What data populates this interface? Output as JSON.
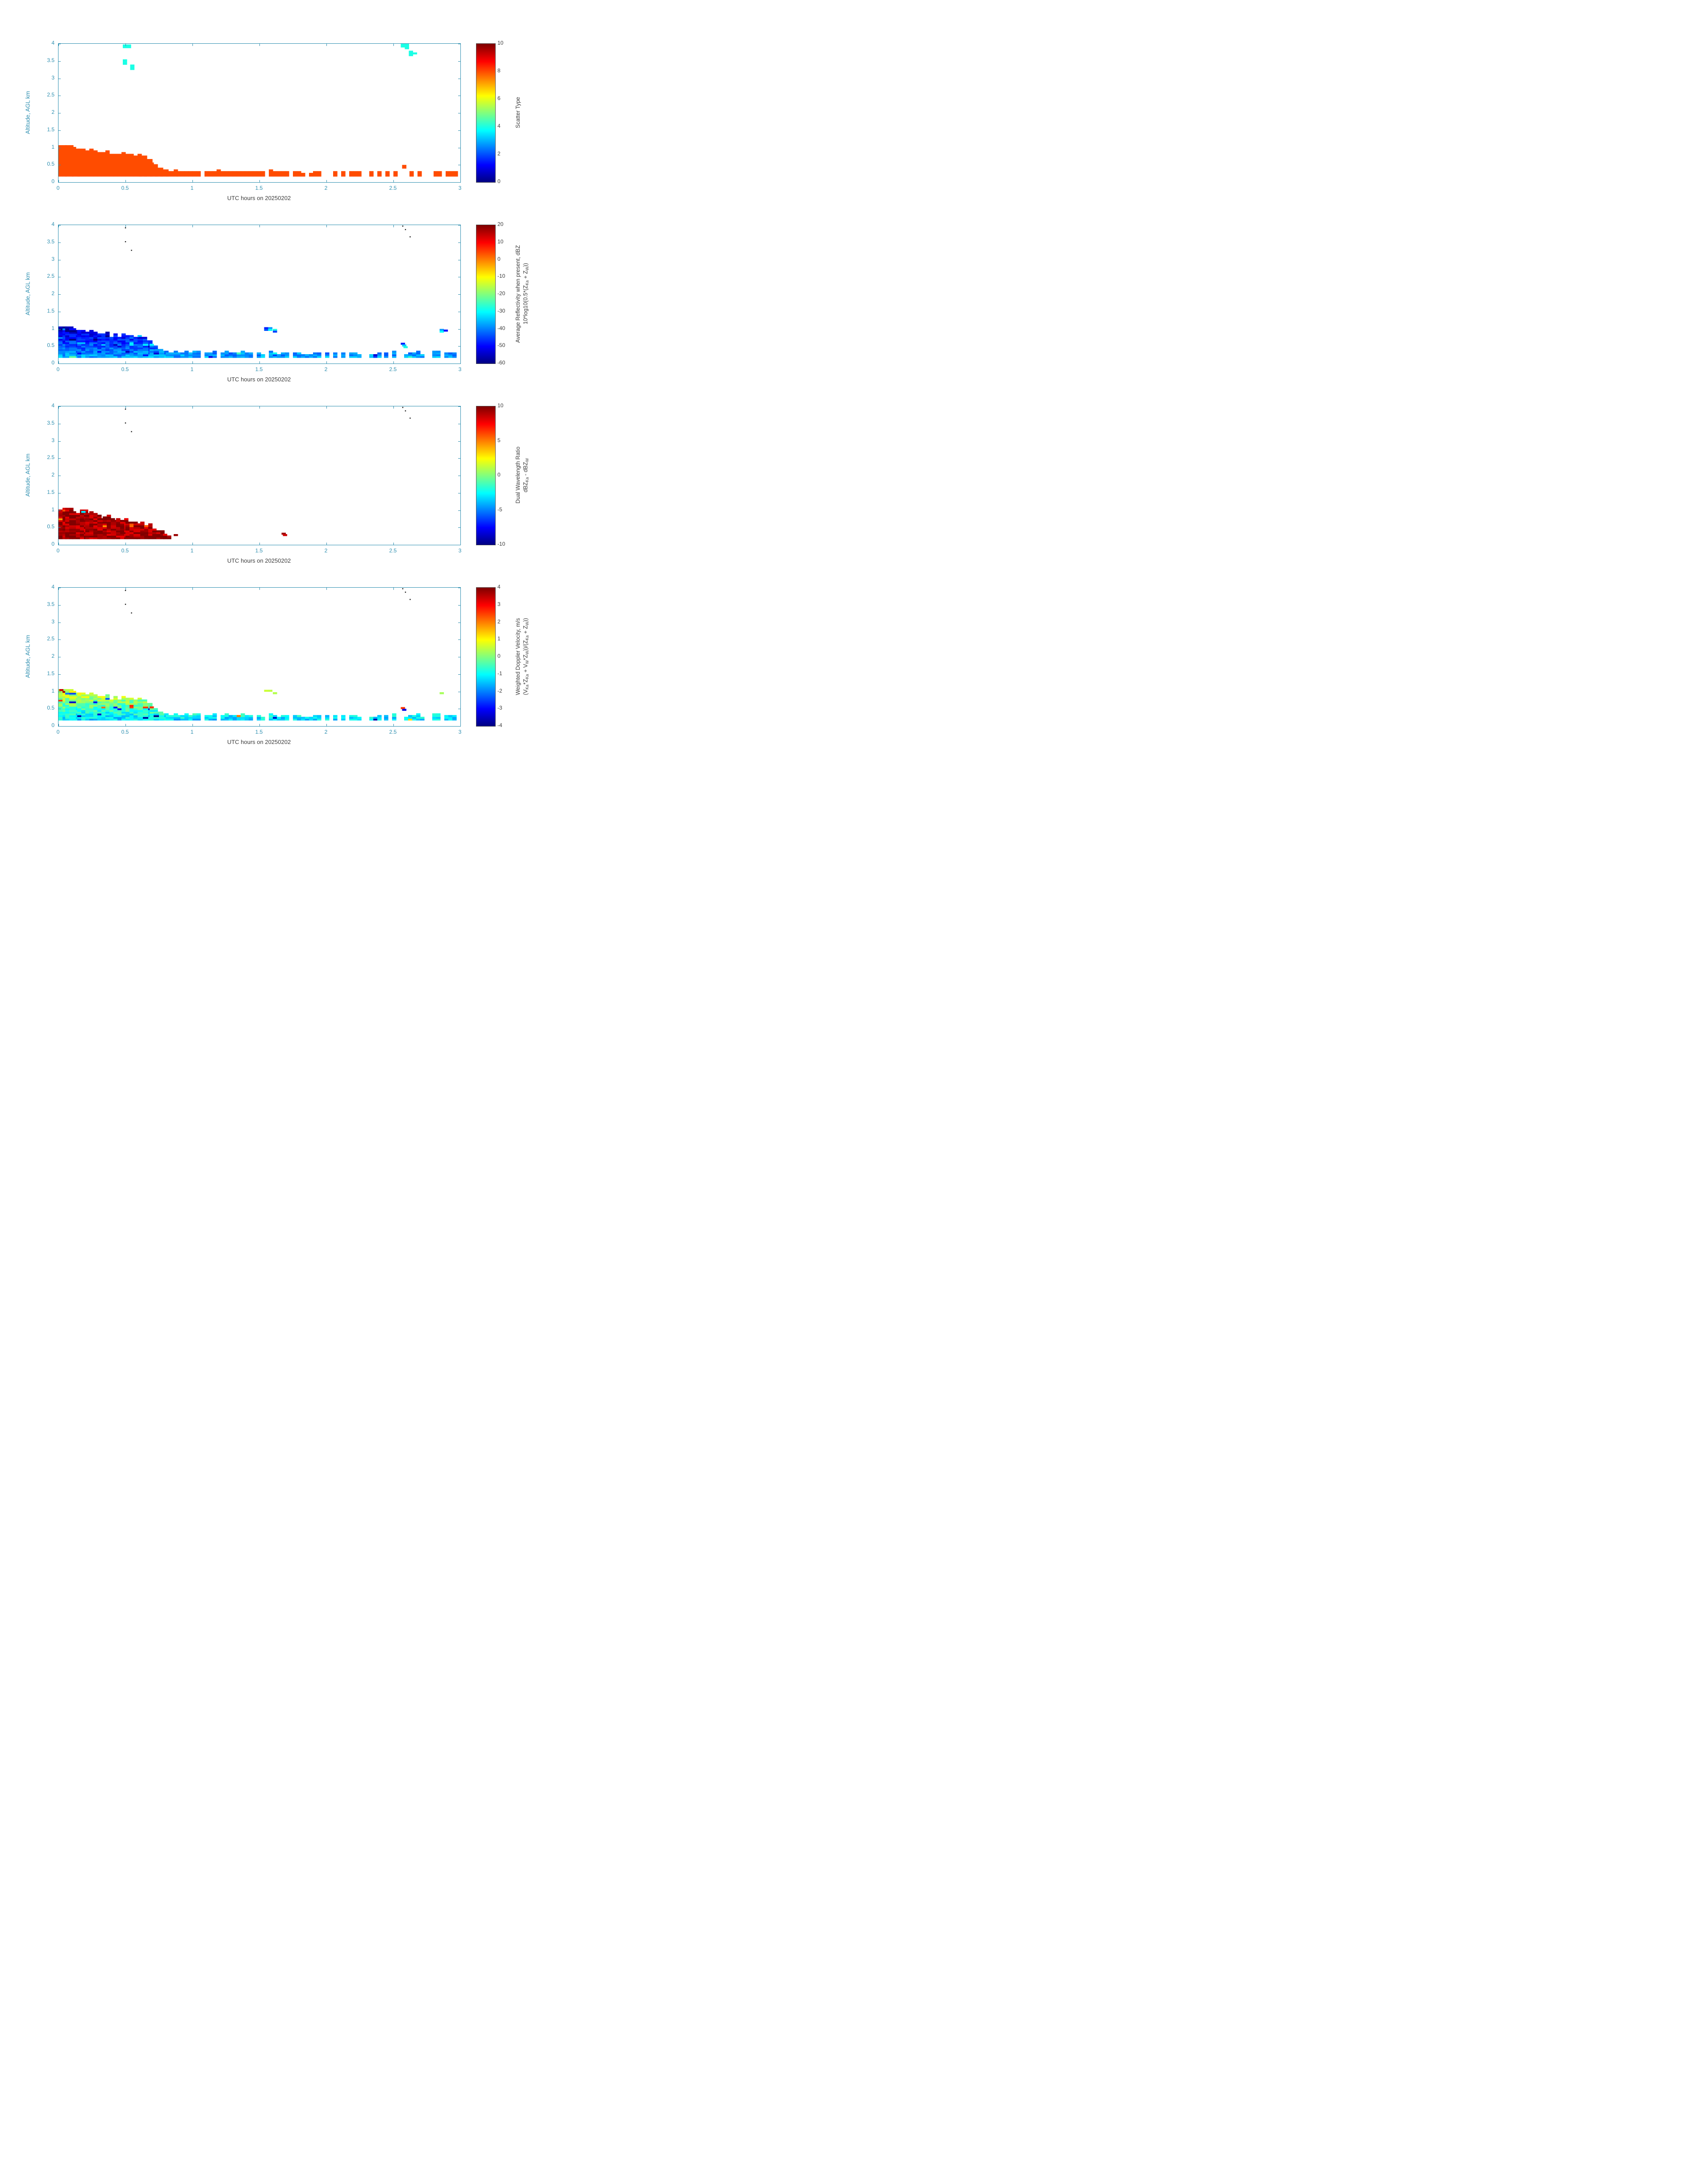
{
  "figure": {
    "bg": "#ffffff",
    "axis_color": "#2e8fb0",
    "tick_label_color": "#2e8fb0",
    "xlabel_color": "#3c3c3c",
    "colorbar_text_color": "#3c3c3c",
    "colormap": "jet"
  },
  "axes": {
    "xlabel": "UTC hours on 20250202",
    "ylabel": "Altitude, AGL km",
    "xlim": [
      0,
      3
    ],
    "ylim": [
      0,
      4
    ],
    "x_ticks": [
      0,
      0.5,
      1,
      1.5,
      2,
      2.5,
      3
    ],
    "x_tick_labels": [
      "0",
      "0.5",
      "1",
      "1.5",
      "2",
      "2.5",
      "3"
    ],
    "y_ticks": [
      0,
      0.5,
      1,
      1.5,
      2,
      2.5,
      3,
      3.5,
      4
    ],
    "y_tick_labels": [
      "0",
      "0.5",
      "1",
      "1.5",
      "2",
      "2.5",
      "3",
      "3.5",
      "4"
    ]
  },
  "chart_data": [
    {
      "type": "heatmap",
      "name": "scatter-type",
      "colorbar": {
        "range": [
          0,
          10
        ],
        "ticks": [
          0,
          2,
          4,
          6,
          8,
          10
        ],
        "label_lines_html": [
          "Scatter Type"
        ]
      },
      "cell": {
        "dt": 0.03,
        "dy": 0.05
      },
      "base": 0.17,
      "gradient_span": 0.9,
      "top_jitter": 0.03,
      "fill": {
        "value_base": 8,
        "value_top": 8,
        "jitter": 0,
        "outlier_p": 0,
        "outlier_add": 0
      },
      "segments": [
        [
          0,
          0.05,
          1.07,
          1
        ],
        [
          0.05,
          0.1,
          1.02,
          1
        ],
        [
          0.1,
          0.14,
          0.97,
          1
        ],
        [
          0.14,
          0.2,
          0.92,
          1
        ],
        [
          0.2,
          0.26,
          0.9,
          1
        ],
        [
          0.26,
          0.32,
          0.87,
          1
        ],
        [
          0.32,
          0.38,
          0.85,
          1
        ],
        [
          0.38,
          0.5,
          0.81,
          1
        ],
        [
          0.5,
          0.56,
          0.8,
          1
        ],
        [
          0.56,
          0.6,
          0.77,
          1
        ],
        [
          0.6,
          0.64,
          0.72,
          1
        ],
        [
          0.64,
          0.68,
          0.62,
          1
        ],
        [
          0.68,
          0.72,
          0.52,
          1
        ],
        [
          0.72,
          0.76,
          0.44,
          1
        ],
        [
          0.76,
          0.8,
          0.37,
          1
        ],
        [
          0.8,
          0.88,
          0.33,
          1
        ],
        [
          0.88,
          1.72,
          0.3,
          0.95
        ],
        [
          1.72,
          3.0,
          0.28,
          0.4
        ]
      ],
      "extras": [
        [
          0.48,
          3.93,
          4
        ],
        [
          0.48,
          3.88,
          4
        ],
        [
          0.51,
          3.93,
          4
        ],
        [
          0.51,
          3.88,
          4
        ],
        [
          0.48,
          3.5,
          4
        ],
        [
          0.48,
          3.45,
          4
        ],
        [
          0.48,
          3.4,
          4
        ],
        [
          0.535,
          3.35,
          4
        ],
        [
          0.535,
          3.3,
          4
        ],
        [
          0.535,
          3.25,
          4
        ],
        [
          2.555,
          3.95,
          4
        ],
        [
          2.555,
          3.9,
          4
        ],
        [
          2.585,
          3.95,
          4
        ],
        [
          2.585,
          3.9,
          4
        ],
        [
          2.585,
          3.85,
          4
        ],
        [
          2.615,
          3.75,
          4
        ],
        [
          2.615,
          3.7,
          4
        ],
        [
          2.615,
          3.65,
          4
        ],
        [
          2.645,
          3.7,
          4
        ],
        [
          2.565,
          0.45,
          8
        ],
        [
          2.565,
          0.4,
          8
        ]
      ],
      "dots": []
    },
    {
      "type": "heatmap",
      "name": "average-reflectivity",
      "colorbar": {
        "range": [
          -60,
          20
        ],
        "ticks": [
          -60,
          -50,
          -40,
          -30,
          -20,
          -10,
          0,
          10,
          20
        ],
        "label_lines_html": [
          "Average Reflectivity when present, dBZ",
          "10*log10(0.5*(Z<sub>Ka</sub> + Z<sub>W</sub>))"
        ]
      },
      "cell": {
        "dt": 0.03,
        "dy": 0.05
      },
      "base": 0.17,
      "gradient_span": 0.9,
      "top_jitter": 0.05,
      "fill": {
        "value_base": -37,
        "value_top": -56,
        "jitter": 5,
        "outlier_p": 0.07,
        "outlier_add": 12
      },
      "segments": [
        [
          0,
          0.05,
          1.07,
          1
        ],
        [
          0.05,
          0.1,
          1.02,
          1
        ],
        [
          0.1,
          0.14,
          0.97,
          1
        ],
        [
          0.14,
          0.2,
          0.92,
          1
        ],
        [
          0.2,
          0.26,
          0.9,
          1
        ],
        [
          0.26,
          0.32,
          0.87,
          1
        ],
        [
          0.32,
          0.38,
          0.85,
          1
        ],
        [
          0.38,
          0.5,
          0.81,
          1
        ],
        [
          0.5,
          0.56,
          0.8,
          1
        ],
        [
          0.56,
          0.6,
          0.77,
          1
        ],
        [
          0.6,
          0.64,
          0.72,
          1
        ],
        [
          0.64,
          0.68,
          0.62,
          1
        ],
        [
          0.68,
          0.72,
          0.52,
          1
        ],
        [
          0.72,
          0.76,
          0.44,
          1
        ],
        [
          0.76,
          0.8,
          0.37,
          1
        ],
        [
          0.8,
          0.88,
          0.33,
          1
        ],
        [
          0.88,
          1.72,
          0.3,
          0.9
        ],
        [
          1.72,
          2.4,
          0.28,
          0.55
        ],
        [
          2.4,
          3.0,
          0.3,
          0.65
        ]
      ],
      "extras": [
        [
          1.535,
          1.0,
          -48
        ],
        [
          1.535,
          0.95,
          -44
        ],
        [
          1.565,
          1.0,
          -38
        ],
        [
          1.565,
          0.95,
          -30
        ],
        [
          1.6,
          0.95,
          -28
        ],
        [
          1.6,
          0.9,
          -45
        ],
        [
          2.555,
          0.55,
          -48
        ],
        [
          2.565,
          0.5,
          -34
        ],
        [
          2.575,
          0.45,
          -28
        ],
        [
          2.845,
          0.95,
          -38
        ],
        [
          2.845,
          0.9,
          -30
        ],
        [
          2.875,
          0.93,
          -50
        ]
      ],
      "dots": [
        [
          0.5,
          3.92
        ],
        [
          0.5,
          3.52
        ],
        [
          0.545,
          3.27
        ],
        [
          2.57,
          3.97
        ],
        [
          2.59,
          3.87
        ],
        [
          2.625,
          3.66
        ]
      ]
    },
    {
      "type": "heatmap",
      "name": "dual-wavelength-ratio",
      "colorbar": {
        "range": [
          -10,
          10
        ],
        "ticks": [
          -10,
          -5,
          0,
          5,
          10
        ],
        "label_lines_html": [
          "Dual Wavelength Ratio",
          "dBZ<sub>Ka</sub> - dBZ<sub>W</sub>"
        ]
      },
      "cell": {
        "dt": 0.03,
        "dy": 0.05
      },
      "base": 0.17,
      "gradient_span": 0.9,
      "top_jitter": 0.06,
      "fill": {
        "value_base": 9.2,
        "value_top": 9.2,
        "jitter": 1.4,
        "outlier_p": 0.06,
        "outlier_add": -4
      },
      "segments": [
        [
          0,
          0.05,
          1.05,
          1
        ],
        [
          0.05,
          0.1,
          1.0,
          1
        ],
        [
          0.1,
          0.2,
          0.93,
          1
        ],
        [
          0.2,
          0.3,
          0.88,
          1
        ],
        [
          0.3,
          0.4,
          0.8,
          1
        ],
        [
          0.4,
          0.5,
          0.73,
          1
        ],
        [
          0.5,
          0.58,
          0.67,
          1
        ],
        [
          0.58,
          0.64,
          0.6,
          1
        ],
        [
          0.64,
          0.7,
          0.52,
          1
        ],
        [
          0.7,
          0.78,
          0.43,
          1
        ],
        [
          0.78,
          0.84,
          0.32,
          0.8
        ]
      ],
      "extras": [
        [
          1.665,
          0.3,
          9.5
        ],
        [
          1.675,
          0.26,
          8.5
        ],
        [
          0.86,
          0.26,
          9.5
        ],
        [
          0.17,
          0.93,
          -3
        ]
      ],
      "dots": [
        [
          0.5,
          3.92
        ],
        [
          0.5,
          3.52
        ],
        [
          0.545,
          3.27
        ],
        [
          2.57,
          3.97
        ],
        [
          2.59,
          3.87
        ],
        [
          2.625,
          3.66
        ]
      ]
    },
    {
      "type": "heatmap",
      "name": "weighted-doppler-velocity",
      "colorbar": {
        "range": [
          -4,
          4
        ],
        "ticks": [
          -4,
          -3,
          -2,
          -1,
          0,
          1,
          2,
          3,
          4
        ],
        "label_lines_html": [
          "Weighted Doppler Velocity, m/s",
          "(V<sub>Ka</sub>*Z<sub>Ka</sub> + V<sub>W</sub>*Z<sub>W</sub>))/(Z<sub>Ka</sub> + Z<sub>W</sub>))"
        ]
      },
      "cell": {
        "dt": 0.03,
        "dy": 0.05
      },
      "base": 0.17,
      "gradient_span": 0.75,
      "top_jitter": 0.05,
      "fill": {
        "value_base": -1.3,
        "value_top": 0.6,
        "jitter": 0.6,
        "outlier_p": 0.05,
        "outlier_add": 2.8
      },
      "segments": [
        [
          0,
          0.05,
          1.07,
          1
        ],
        [
          0.05,
          0.1,
          1.02,
          1
        ],
        [
          0.1,
          0.14,
          0.97,
          1
        ],
        [
          0.14,
          0.2,
          0.92,
          1
        ],
        [
          0.2,
          0.26,
          0.9,
          1
        ],
        [
          0.26,
          0.32,
          0.87,
          1
        ],
        [
          0.32,
          0.38,
          0.85,
          1
        ],
        [
          0.38,
          0.5,
          0.81,
          1
        ],
        [
          0.5,
          0.56,
          0.8,
          1
        ],
        [
          0.56,
          0.6,
          0.77,
          1
        ],
        [
          0.6,
          0.64,
          0.72,
          1
        ],
        [
          0.64,
          0.68,
          0.62,
          1
        ],
        [
          0.68,
          0.72,
          0.52,
          1
        ],
        [
          0.72,
          0.76,
          0.44,
          1
        ],
        [
          0.76,
          0.8,
          0.37,
          1
        ],
        [
          0.8,
          0.88,
          0.33,
          1
        ],
        [
          0.88,
          1.72,
          0.3,
          0.9
        ],
        [
          1.72,
          2.4,
          0.28,
          0.55
        ],
        [
          2.4,
          3.0,
          0.3,
          0.65
        ]
      ],
      "extras": [
        [
          0.005,
          1.02,
          3.4
        ],
        [
          1.535,
          1.0,
          0.6
        ],
        [
          1.565,
          1.0,
          0.5
        ],
        [
          1.6,
          0.93,
          0.4
        ],
        [
          2.845,
          0.93,
          0.3
        ],
        [
          2.555,
          0.5,
          2.6
        ],
        [
          2.565,
          0.45,
          -3.2
        ]
      ],
      "dots": [
        [
          0.5,
          3.92
        ],
        [
          0.5,
          3.52
        ],
        [
          0.545,
          3.27
        ],
        [
          2.57,
          3.97
        ],
        [
          2.59,
          3.87
        ],
        [
          2.625,
          3.66
        ]
      ]
    }
  ]
}
